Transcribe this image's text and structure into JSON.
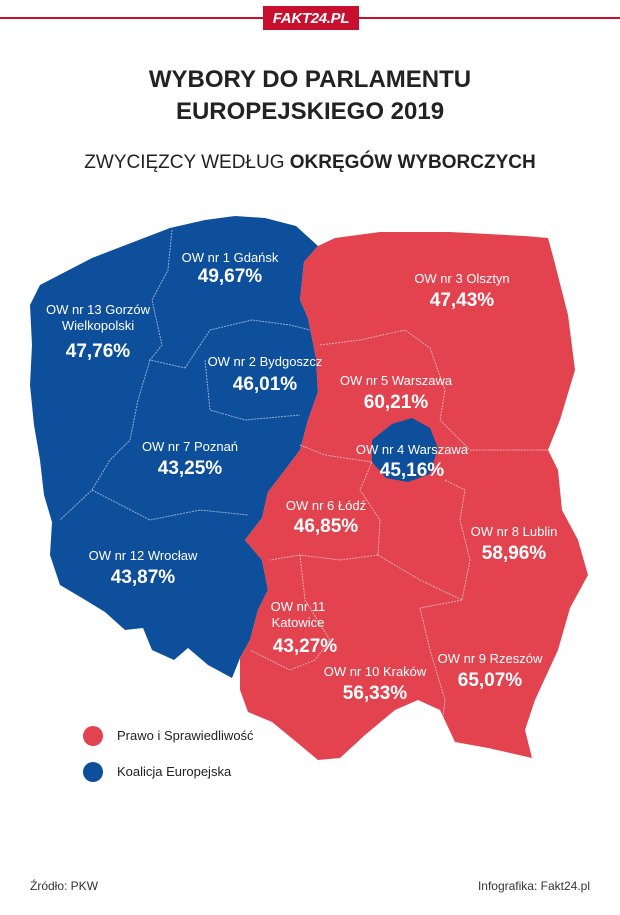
{
  "header": {
    "logo": "FAKT24.PL"
  },
  "title": {
    "line1": "WYBORY DO PARLAMENTU",
    "line2": "EUROPEJSKIEGO 2019"
  },
  "subtitle": {
    "prefix": "ZWYCIĘZCY WEDŁUG",
    "bold": "OKRĘGÓW WYBORCZYCH"
  },
  "colors": {
    "pis": "#e2434f",
    "ke": "#0e4f9c",
    "brand": "#c8102e"
  },
  "districts": [
    {
      "name": "OW nr 1 Gdańsk",
      "value": "49,67%",
      "winner": "ke"
    },
    {
      "name": "OW nr 2 Bydgoszcz",
      "value": "46,01%",
      "winner": "ke"
    },
    {
      "name": "OW nr 3 Olsztyn",
      "value": "47,43%",
      "winner": "pis"
    },
    {
      "name": "OW nr 4 Warszawa",
      "value": "45,16%",
      "winner": "ke"
    },
    {
      "name": "OW nr 5 Warszawa",
      "value": "60,21%",
      "winner": "pis"
    },
    {
      "name": "OW nr 6 Łódź",
      "value": "46,85%",
      "winner": "pis"
    },
    {
      "name": "OW nr 7 Poznań",
      "value": "43,25%",
      "winner": "ke"
    },
    {
      "name": "OW nr 8 Lublin",
      "value": "58,96%",
      "winner": "pis"
    },
    {
      "name": "OW nr 9 Rzeszów",
      "value": "65,07%",
      "winner": "pis"
    },
    {
      "name": "OW nr 10 Kraków",
      "value": "56,33%",
      "winner": "pis"
    },
    {
      "name_line1": "OW nr 11",
      "name_line2": "Katowice",
      "value": "43,27%",
      "winner": "pis"
    },
    {
      "name": "OW nr 12 Wrocław",
      "value": "43,87%",
      "winner": "ke"
    },
    {
      "name_line1": "OW nr 13 Gorzów",
      "name_line2": "Wielkopolski",
      "value": "47,76%",
      "winner": "ke"
    }
  ],
  "legend": [
    {
      "label": "Prawo i Sprawiedliwość",
      "color": "#e2434f"
    },
    {
      "label": "Koalicja Europejska",
      "color": "#0e4f9c"
    }
  ],
  "footer": {
    "source": "Źródło: PKW",
    "credit": "Infografika: Fakt24.pl"
  }
}
